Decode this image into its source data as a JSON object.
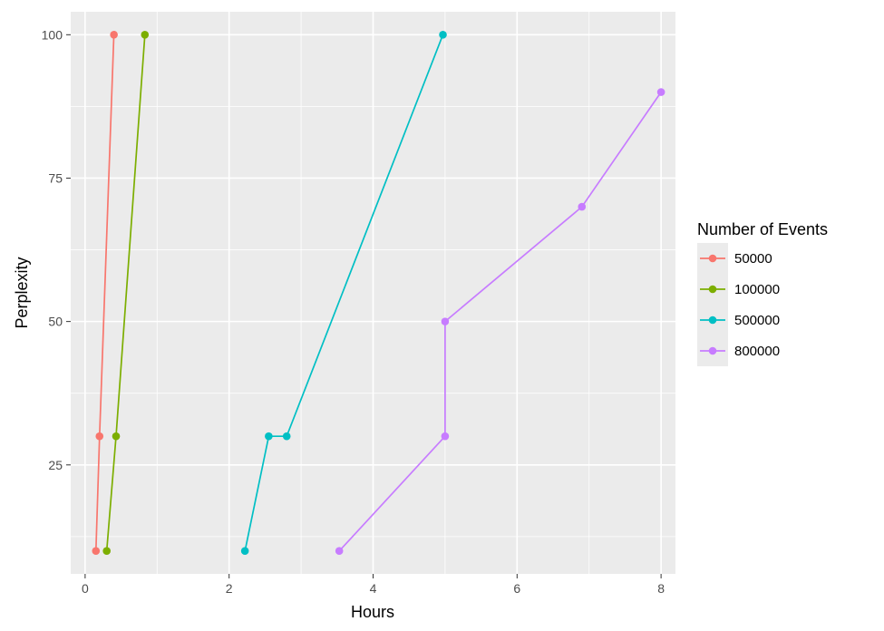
{
  "chart_data": {
    "type": "line",
    "title": "",
    "xlabel": "Hours",
    "ylabel": "Perplexity",
    "xlim": [
      -0.2,
      8.2
    ],
    "ylim": [
      6,
      104
    ],
    "xticks": [
      0,
      2,
      4,
      6,
      8
    ],
    "yticks": [
      25,
      50,
      75,
      100
    ],
    "grid": true,
    "legend": {
      "title": "Number of Events",
      "position": "right"
    },
    "series": [
      {
        "name": "50000",
        "color": "#F8766D",
        "points": [
          {
            "x": 0.15,
            "y": 10
          },
          {
            "x": 0.2,
            "y": 30
          },
          {
            "x": 0.4,
            "y": 100
          }
        ]
      },
      {
        "name": "100000",
        "color": "#7CAE00",
        "points": [
          {
            "x": 0.3,
            "y": 10
          },
          {
            "x": 0.43,
            "y": 30
          },
          {
            "x": 0.83,
            "y": 100
          }
        ]
      },
      {
        "name": "500000",
        "color": "#00BFC4",
        "points": [
          {
            "x": 2.22,
            "y": 10
          },
          {
            "x": 2.55,
            "y": 30
          },
          {
            "x": 2.8,
            "y": 30
          },
          {
            "x": 4.97,
            "y": 100
          }
        ]
      },
      {
        "name": "800000",
        "color": "#C77CFF",
        "points": [
          {
            "x": 3.53,
            "y": 10
          },
          {
            "x": 5.0,
            "y": 30
          },
          {
            "x": 5.0,
            "y": 50
          },
          {
            "x": 6.9,
            "y": 70
          },
          {
            "x": 8.0,
            "y": 90
          }
        ]
      }
    ]
  }
}
